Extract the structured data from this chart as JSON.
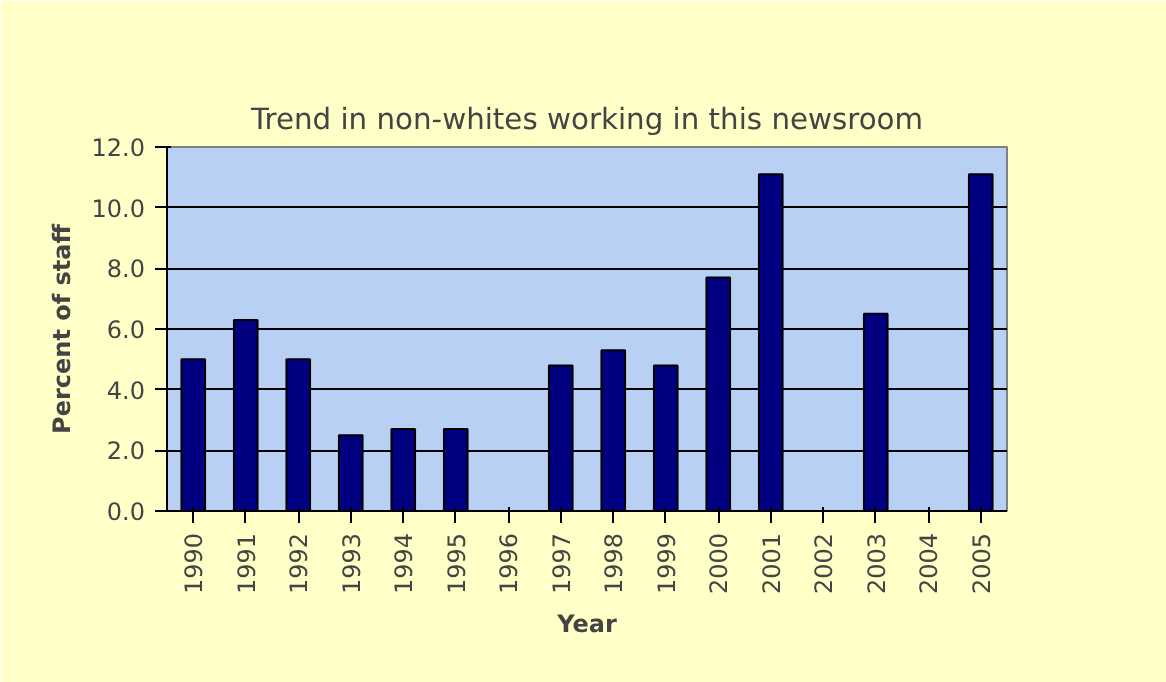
{
  "chart_data": {
    "type": "bar",
    "title": "Trend in non-whites working in this newsroom",
    "xlabel": "Year",
    "ylabel": "Percent of staff",
    "categories": [
      "1990",
      "1991",
      "1992",
      "1993",
      "1994",
      "1995",
      "1996",
      "1997",
      "1998",
      "1999",
      "2000",
      "2001",
      "2002",
      "2003",
      "2004",
      "2005"
    ],
    "values": [
      5.0,
      6.3,
      5.0,
      2.5,
      2.7,
      2.7,
      null,
      4.8,
      5.3,
      4.8,
      7.7,
      11.1,
      null,
      6.5,
      null,
      11.1
    ],
    "color": "#000080",
    "ylim": [
      0,
      12
    ],
    "yticks": [
      {
        "value": 0,
        "label": "0.0"
      },
      {
        "value": 2,
        "label": "2.0"
      },
      {
        "value": 4,
        "label": "4.0"
      },
      {
        "value": 6,
        "label": "6.0"
      },
      {
        "value": 8,
        "label": "8.0"
      },
      {
        "value": 10,
        "label": "10.0"
      },
      {
        "value": 12,
        "label": "12.0"
      }
    ],
    "grid": "y"
  }
}
